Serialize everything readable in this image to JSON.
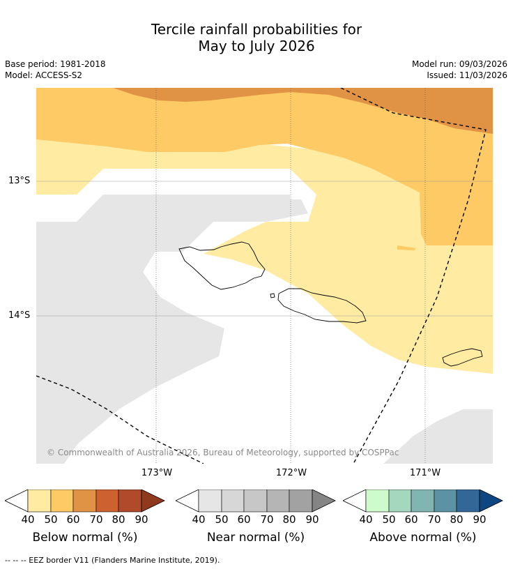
{
  "title": {
    "line1": "Tercile rainfall probabilities for",
    "line2": "May to July 2026"
  },
  "meta": {
    "base_period": "Base period: 1981-2018",
    "model": "Model: ACCESS-S2",
    "model_run": "Model run: 09/03/2026",
    "issued": "Issued: 11/03/2026"
  },
  "axes": {
    "lat_labels": [
      "13°S",
      "14°S"
    ],
    "lon_labels": [
      "173°W",
      "172°W",
      "171°W"
    ]
  },
  "copyright": "© Commonwealth of Australia 2026, Bureau of Meteorology, supported by COSPPac",
  "colors": {
    "below_40": "#ffeba1",
    "below_50": "#feca65",
    "below_60": "#e09344",
    "below_70": "#cd6130",
    "below_80": "#b04a2b",
    "below_90": "#8f3a1f",
    "near_fill": "#e6e6e6",
    "ocean": "#ffffff",
    "grid": "#555555"
  },
  "legends": [
    {
      "title": "Below normal (%)",
      "ticks": [
        "40",
        "50",
        "60",
        "70",
        "80",
        "90"
      ],
      "colors": [
        "#ffeba1",
        "#feca65",
        "#e09344",
        "#cd6130",
        "#b04a2b",
        "#8f3a1f"
      ]
    },
    {
      "title": "Near normal (%)",
      "ticks": [
        "40",
        "50",
        "60",
        "70",
        "80",
        "90"
      ],
      "colors": [
        "#e6e6e6",
        "#d7d7d7",
        "#c7c7c7",
        "#b5b5b5",
        "#a2a2a2",
        "#858585"
      ]
    },
    {
      "title": "Above normal (%)",
      "ticks": [
        "40",
        "50",
        "60",
        "70",
        "80",
        "90"
      ],
      "colors": [
        "#cdfbcb",
        "#a4d7be",
        "#80b5b1",
        "#5b93a4",
        "#336797",
        "#0d4681"
      ]
    }
  ],
  "eez_note": "--  --  -- EEZ border V11 (Flanders Marine Institute, 2019)."
}
